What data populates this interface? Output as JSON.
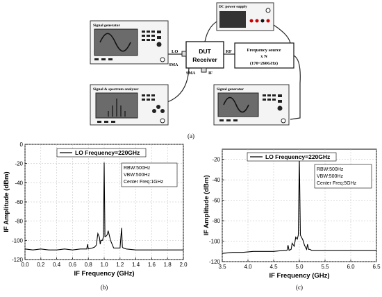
{
  "setup": {
    "caption": "(a)",
    "dc_power_supply": "DC power supply",
    "signal_generator_top": "Signal generator",
    "signal_generator_bottom": "Signal generator",
    "spectrum_analyzer": "Signal & spectrum analyzer",
    "dut_line1": "DUT",
    "dut_line2": "Receiver",
    "lo_label": "LO",
    "sma_left": "SMA",
    "sma_bottom": "SMA",
    "if_label": "IF",
    "rf_label": "RF",
    "freq_source_line1": "Frequency source",
    "freq_source_line2": "x N",
    "freq_source_line3": "(170~260GHz)"
  },
  "chart_data": [
    {
      "type": "line",
      "caption": "(b)",
      "legend": "LO Frequency=220GHz",
      "annotation": [
        "RBW:500Hz",
        "VBW:500Hz",
        "Center Freq:1GHz"
      ],
      "xlabel": "IF Frequency (GHz)",
      "ylabel": "IF Amplitude (dBm)",
      "xlim": [
        0.0,
        2.0
      ],
      "ylim": [
        -120,
        0
      ],
      "xticks": [
        "0.0",
        "0.2",
        "0.4",
        "0.6",
        "0.8",
        "1.0",
        "1.2",
        "1.4",
        "1.6",
        "1.8",
        "2.0"
      ],
      "yticks": [
        "0",
        "-20",
        "-40",
        "-60",
        "-80",
        "-100",
        "-120"
      ],
      "grid": true,
      "series": [
        {
          "x": [
            0.0,
            0.1,
            0.2,
            0.3,
            0.4,
            0.5,
            0.6,
            0.7,
            0.78,
            0.79,
            0.8,
            0.85,
            0.88,
            0.9,
            0.92,
            0.94,
            0.95,
            0.96,
            0.98,
            0.99,
            1.0,
            1.01,
            1.02,
            1.04,
            1.05,
            1.06,
            1.08,
            1.1,
            1.12,
            1.15,
            1.2,
            1.22,
            1.23,
            1.24,
            1.28,
            1.4,
            1.6,
            1.8,
            2.0
          ],
          "y": [
            -109,
            -110,
            -109,
            -110,
            -110,
            -109,
            -110,
            -109,
            -109,
            -104,
            -109,
            -108,
            -107,
            -105,
            -93,
            -97,
            -104,
            -100,
            -100,
            -96,
            -19,
            -96,
            -96,
            -94,
            -90,
            -93,
            -100,
            -104,
            -108,
            -108,
            -108,
            -87,
            -107,
            -108,
            -109,
            -110,
            -110,
            -110,
            -110
          ]
        }
      ]
    },
    {
      "type": "line",
      "caption": "(c)",
      "legend": "LO Frequency=220GHz",
      "annotation": [
        "RBW:500Hz",
        "VBW:500Hz",
        "Center Freq:5GHz"
      ],
      "xlabel": "IF Frequency (GHz)",
      "ylabel": "IF Amplitude (dBm)",
      "xlim": [
        3.5,
        6.5
      ],
      "ylim": [
        -120,
        -10
      ],
      "xticks": [
        "3.5",
        "4.0",
        "4.5",
        "5.0",
        "5.5",
        "6.0",
        "6.5"
      ],
      "yticks": [
        "-20",
        "-40",
        "-60",
        "-80",
        "-100",
        "-120"
      ],
      "grid": true,
      "series": [
        {
          "x": [
            3.5,
            3.7,
            3.9,
            4.1,
            4.3,
            4.5,
            4.7,
            4.76,
            4.78,
            4.8,
            4.84,
            4.86,
            4.9,
            4.93,
            4.96,
            4.98,
            5.0,
            5.02,
            5.04,
            5.07,
            5.1,
            5.14,
            5.16,
            5.18,
            5.2,
            5.24,
            5.3,
            5.5,
            5.7,
            5.9,
            6.1,
            6.3,
            6.5
          ],
          "y": [
            -112,
            -111,
            -111,
            -110,
            -110,
            -110,
            -109,
            -109,
            -104,
            -109,
            -108,
            -102,
            -105,
            -96,
            -98,
            -94,
            -19,
            -94,
            -96,
            -99,
            -104,
            -108,
            -103,
            -108,
            -108,
            -109,
            -109,
            -109,
            -109,
            -109,
            -109,
            -109,
            -109
          ]
        }
      ]
    }
  ]
}
